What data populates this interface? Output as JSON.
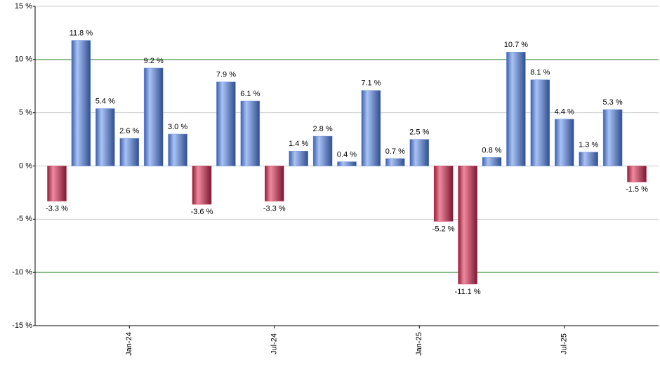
{
  "chart_data": {
    "type": "bar",
    "categories": [
      null,
      null,
      null,
      "Jan-24",
      null,
      null,
      null,
      null,
      null,
      "Jul-24",
      null,
      null,
      null,
      null,
      null,
      "Jan-25",
      null,
      null,
      null,
      null,
      null,
      "Jul-25",
      null,
      null,
      null
    ],
    "values": [
      -3.3,
      11.8,
      5.4,
      2.6,
      9.2,
      3.0,
      -3.6,
      7.9,
      6.1,
      -3.3,
      1.4,
      2.8,
      0.4,
      7.1,
      0.7,
      2.5,
      -5.2,
      -11.1,
      0.8,
      10.7,
      8.1,
      4.4,
      1.3,
      5.3,
      -1.5
    ],
    "value_labels": [
      "-3.3 %",
      "11.8 %",
      "5.4 %",
      "2.6 %",
      "9.2 %",
      "3.0 %",
      "-3.6 %",
      "7.9 %",
      "6.1 %",
      "-3.3 %",
      "1.4 %",
      "2.8 %",
      "0.4 %",
      "7.1 %",
      "0.7 %",
      "2.5 %",
      "-5.2 %",
      "-11.1 %",
      "0.8 %",
      "10.7 %",
      "8.1 %",
      "4.4 %",
      "1.3 %",
      "5.3 %",
      "-1.5 %"
    ],
    "colors": {
      "positive": "#6f95e6",
      "negative": "#c8304f"
    },
    "ylim": [
      -15,
      15
    ],
    "yticks": [
      {
        "value": -15,
        "label": "-15 %"
      },
      {
        "value": -10,
        "label": "-10 %"
      },
      {
        "value": -5,
        "label": "-5 %"
      },
      {
        "value": 0,
        "label": "0 %"
      },
      {
        "value": 5,
        "label": "5 %"
      },
      {
        "value": 10,
        "label": "10 %"
      },
      {
        "value": 15,
        "label": "15 %"
      }
    ],
    "grid": true,
    "grid_colors": [
      "#c8c8c8",
      "#2e8b2e",
      "#c8c8c8",
      "#c8c8c8",
      "#c8c8c8",
      "#2e8b2e",
      "#c8c8c8"
    ]
  }
}
